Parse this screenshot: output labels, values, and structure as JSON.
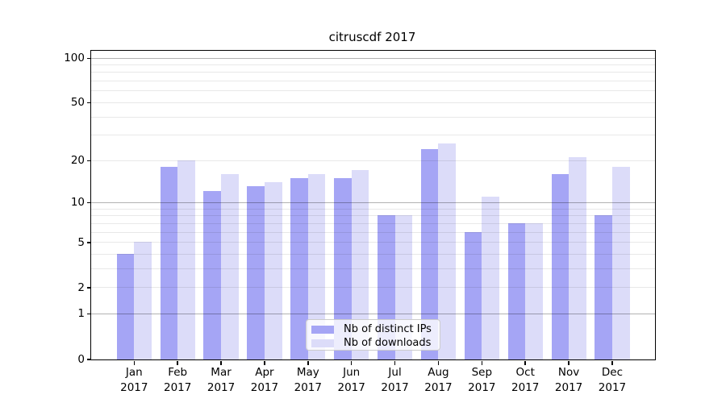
{
  "figure": {
    "title": "citruscdf 2017"
  },
  "chart_data": {
    "type": "bar",
    "title": "citruscdf 2017",
    "categories": [
      "Jan 2017",
      "Feb 2017",
      "Mar 2017",
      "Apr 2017",
      "May 2017",
      "Jun 2017",
      "Jul 2017",
      "Aug 2017",
      "Sep 2017",
      "Oct 2017",
      "Nov 2017",
      "Dec 2017"
    ],
    "series": [
      {
        "name": "Nb of distinct IPs",
        "color": "#a5a5f5",
        "values": [
          4,
          18,
          12,
          13,
          15,
          15,
          8,
          24,
          6,
          7,
          16,
          8
        ]
      },
      {
        "name": "Nb of downloads",
        "color": "#dcdcf9",
        "values": [
          5,
          20,
          16,
          14,
          16,
          17,
          8,
          26,
          11,
          7,
          21,
          18
        ]
      }
    ],
    "xlabel": "",
    "ylabel": "",
    "yscale": "log10(1+y)",
    "ylim": [
      0,
      110
    ],
    "ytick_values": [
      0,
      1,
      2,
      5,
      10,
      20,
      50,
      100
    ],
    "ytick_labels": [
      "0",
      "1",
      "2",
      "5",
      "10",
      "20",
      "50",
      "100"
    ],
    "grid": "on",
    "grid_major_values": [
      1,
      10,
      100
    ],
    "grid_minor_values": [
      2,
      3,
      4,
      5,
      6,
      7,
      8,
      9,
      20,
      30,
      40,
      50,
      60,
      70,
      80,
      90
    ],
    "legend_position": "lower center",
    "colors": {
      "bar_distinct_ips": "#a5a5f5",
      "bar_downloads": "#dcdcf9",
      "grid_major": "rgba(0,0,0,0.30)",
      "grid_minor": "rgba(0,0,0,0.09)",
      "axis": "#000000",
      "legend_border": "#cccccc",
      "legend_background": "rgba(255,255,255,0.8)"
    }
  }
}
